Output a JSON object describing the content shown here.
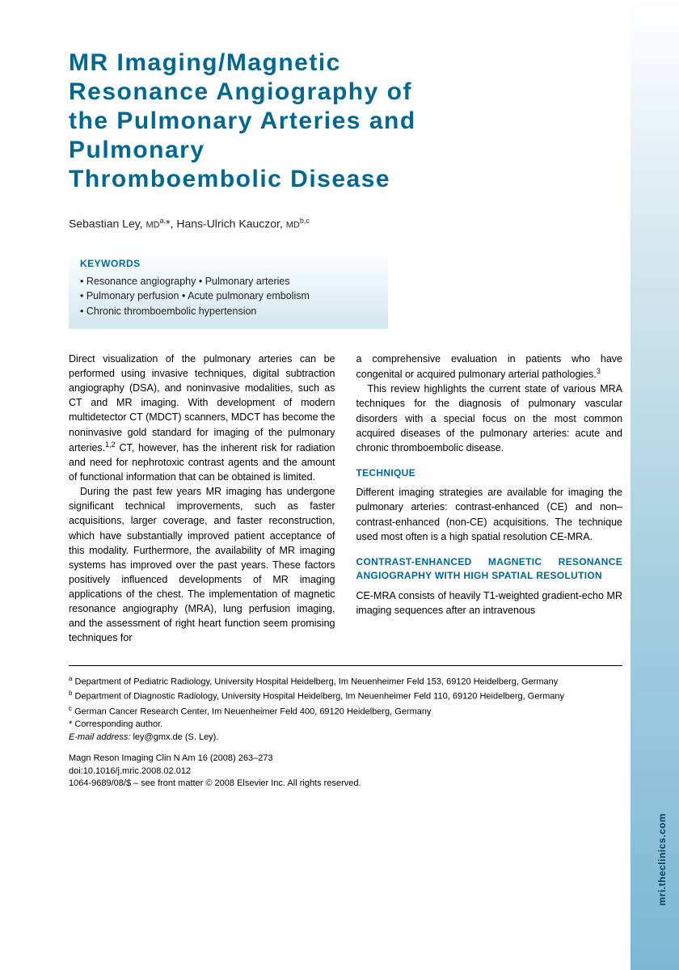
{
  "title": "MR Imaging/Magnetic Resonance Angiography of the Pulmonary Arteries and Pulmonary Thromboembolic Disease",
  "authors_html": "Sebastian Ley, MD^a,*, Hans-Ulrich Kauczor, MD^b,c",
  "author1_name": "Sebastian Ley,",
  "author1_deg": "MD",
  "author1_sup": "a,",
  "author1_star": "*",
  "author_sep": ", ",
  "author2_name": "Hans-Ulrich Kauczor,",
  "author2_deg": "MD",
  "author2_sup": "b,c",
  "keywords": {
    "title": "KEYWORDS",
    "line1": "• Resonance angiography • Pulmonary arteries",
    "line2": "• Pulmonary perfusion • Acute pulmonary embolism",
    "line3": "• Chronic thromboembolic hypertension"
  },
  "col1": {
    "p1a": "Direct visualization of the pulmonary arteries can be performed using invasive techniques, digital subtraction angiography (DSA), and noninvasive modalities, such as CT and MR imaging. With development of modern multidetector CT (MDCT) scanners, MDCT has become the noninvasive gold standard for imaging of the pulmonary arteries.",
    "p1ref": "1,2",
    "p1b": " CT, however, has the inherent risk for radiation and need for nephrotoxic contrast agents and the amount of functional information that can be obtained is limited.",
    "p2": "During the past few years MR imaging has undergone significant technical improvements, such as faster acquisitions, larger coverage, and faster reconstruction, which have substantially improved patient acceptance of this modality. Furthermore, the availability of MR imaging systems has improved over the past years. These factors positively influenced developments of MR imaging applications of the chest. The implementation of magnetic resonance angiography (MRA), lung perfusion imaging, and the assessment of right heart function seem promising techniques for"
  },
  "col2": {
    "p1a": "a comprehensive evaluation in patients who have congenital or acquired pulmonary arterial pathologies.",
    "p1ref": "3",
    "p2": "This review highlights the current state of various MRA techniques for the diagnosis of pulmonary vascular disorders with a special focus on the most common acquired diseases of the pulmonary arteries: acute and chronic thromboembolic disease.",
    "h1": "TECHNIQUE",
    "p3": "Different imaging strategies are available for imaging the pulmonary arteries: contrast-enhanced (CE) and non–contrast-enhanced (non-CE) acquisitions. The technique used most often is a high spatial resolution CE-MRA.",
    "h2": "CONTRAST-ENHANCED MAGNETIC RESONANCE ANGIOGRAPHY WITH HIGH SPATIAL RESOLUTION",
    "p4": "CE-MRA consists of heavily T1-weighted gradient-echo MR imaging sequences after an intravenous"
  },
  "affiliations": {
    "a": "Department of Pediatric Radiology, University Hospital Heidelberg, Im Neuenheimer Feld 153, 69120 Heidelberg, Germany",
    "b": "Department of Diagnostic Radiology, University Hospital Heidelberg, Im Neuenheimer Feld 110, 69120 Heidelberg, Germany",
    "c": "German Cancer Research Center, Im Neuenheimer Feld 400, 69120 Heidelberg, Germany",
    "corr": "* Corresponding author.",
    "email_label": "E-mail address:",
    "email": " ley@gmx.de (S. Ley)."
  },
  "citation": {
    "journal": "Magn Reson Imaging Clin N Am 16 (2008) 263–273",
    "doi": "doi:10.1016/j.mric.2008.02.012",
    "copyright": "1064-9689/08/$ – see front matter © 2008 Elsevier Inc. All rights reserved."
  },
  "side_label": "mri.theclinics.com"
}
